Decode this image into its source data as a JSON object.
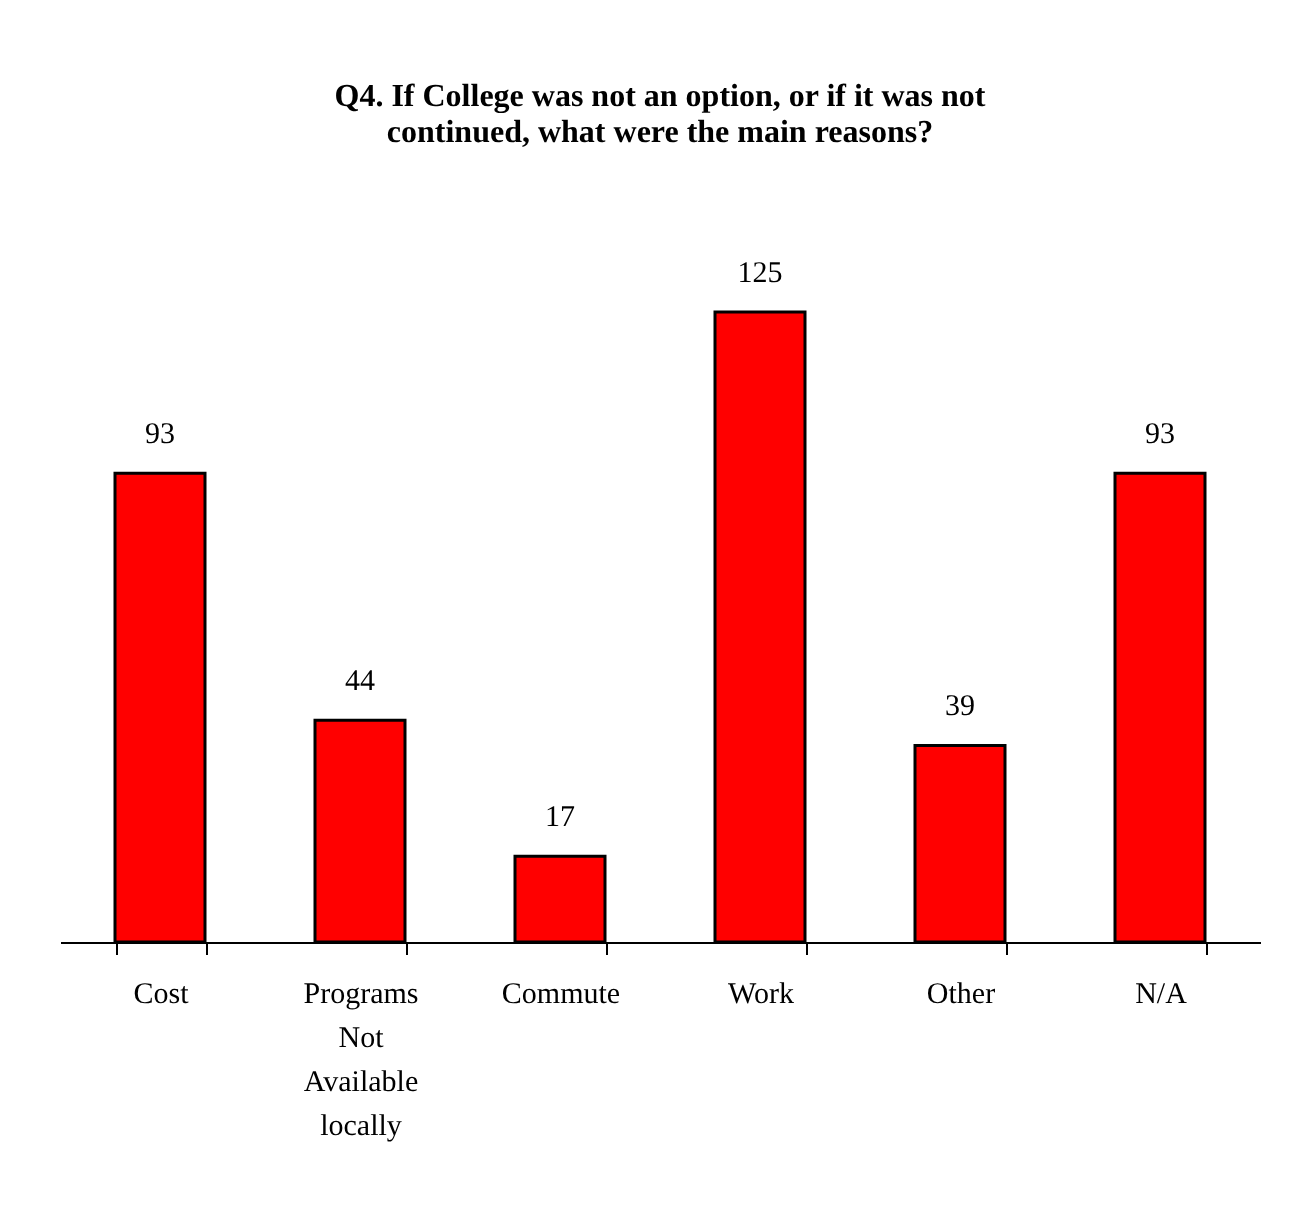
{
  "chart_data": {
    "type": "bar",
    "title": "Q4. If College was not an option, or if it was not continued, what were the main reasons?",
    "categories": [
      "Cost",
      "Programs Not Available locally",
      "Commute",
      "Work",
      "Other",
      "N/A"
    ],
    "values": [
      93,
      44,
      17,
      125,
      39,
      93
    ],
    "color": "#ff0000",
    "data_labels": true
  }
}
